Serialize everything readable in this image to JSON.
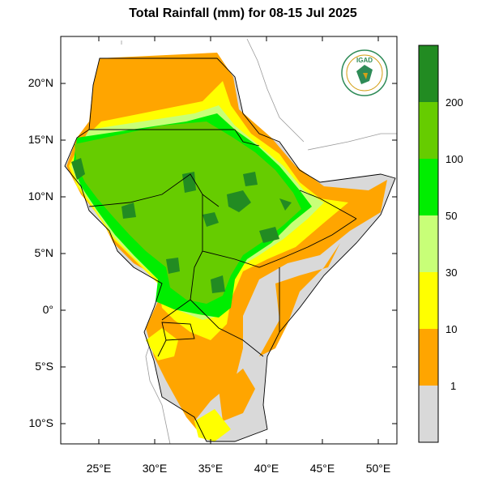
{
  "title": "Total Rainfall (mm) for 08-15 Jul 2025",
  "logo_text": "IGAD",
  "colors": {
    "band_0_1": "#d9d9d9",
    "band_1_10": "#ffa500",
    "band_10_30": "#ffff00",
    "band_30_50": "#c8ff78",
    "band_50_100": "#00ee00",
    "band_100_200": "#66cc00",
    "band_200_plus": "#228b22",
    "borders": "#000000"
  },
  "map": {
    "lon_range": [
      22,
      52
    ],
    "lat_range": [
      -12,
      24
    ],
    "lat_ticks": [
      "20°N",
      "15°N",
      "10°N",
      "5°N",
      "0°",
      "5°S",
      "10°S"
    ],
    "lon_ticks": [
      "25°E",
      "30°E",
      "35°E",
      "40°E",
      "45°E",
      "50°E"
    ]
  },
  "colorbar": {
    "labels": [
      "200",
      "100",
      "50",
      "30",
      "10",
      "1"
    ]
  }
}
